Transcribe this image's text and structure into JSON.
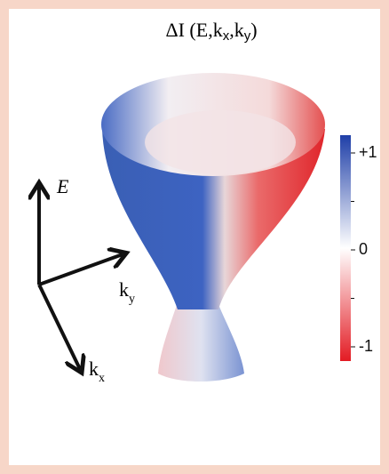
{
  "title": {
    "prefix": "ΔI (E,k",
    "sub1": "x",
    "mid": ",k",
    "sub2": "y",
    "suffix": ")"
  },
  "axes": {
    "e": "E",
    "ky": {
      "base": "k",
      "sub": "y"
    },
    "kx": {
      "base": "k",
      "sub": "x"
    }
  },
  "colorbar": {
    "ticks": [
      {
        "value": 1,
        "label": "+1"
      },
      {
        "value": 0,
        "label": "0"
      },
      {
        "value": -1,
        "label": "-1"
      }
    ]
  }
}
